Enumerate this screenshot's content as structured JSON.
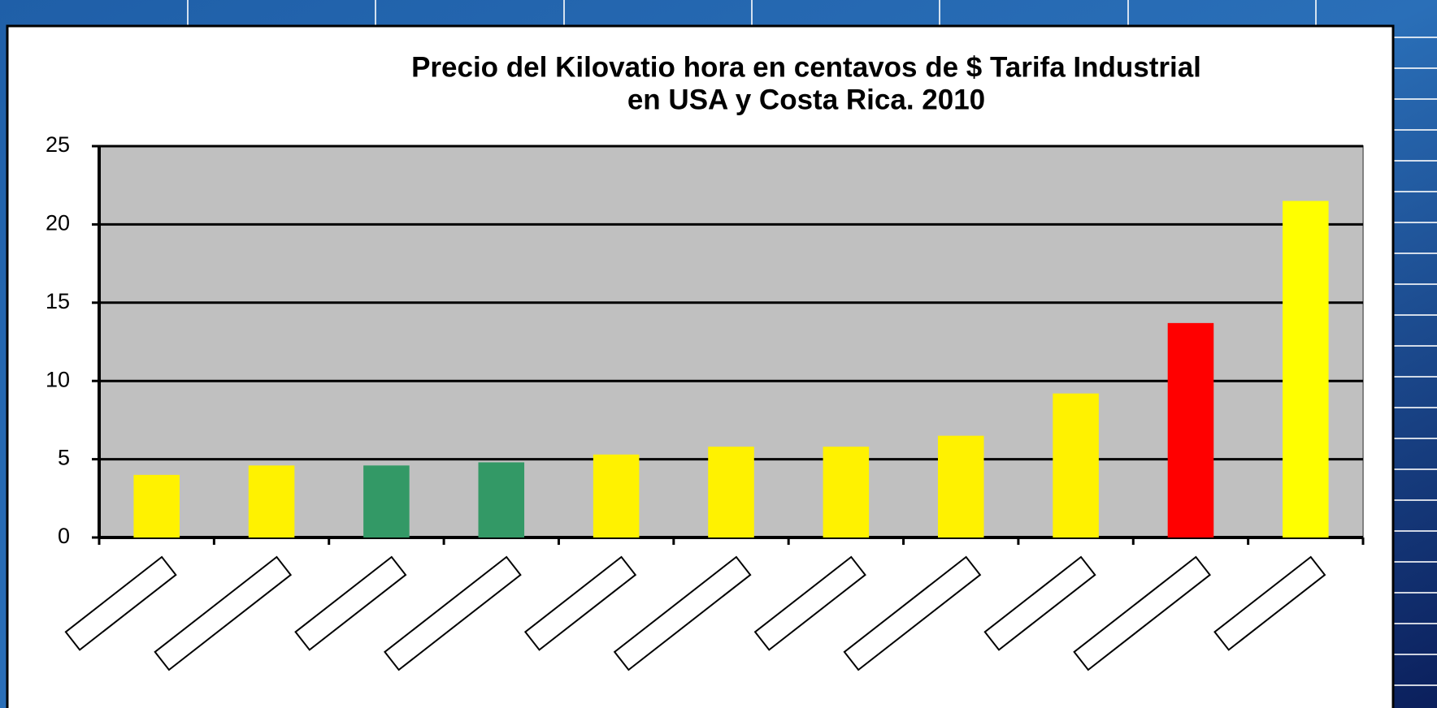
{
  "chart_data": {
    "type": "bar",
    "title": [
      "Precio del Kilovatio hora en centavos de $ Tarifa Industrial",
      "en USA  y Costa Rica. 2010"
    ],
    "categories": [
      null,
      null,
      null,
      null,
      null,
      null,
      null,
      null,
      null,
      null,
      null
    ],
    "values": [
      4.0,
      4.6,
      4.6,
      4.8,
      5.3,
      5.8,
      5.8,
      6.5,
      9.2,
      13.7,
      21.5
    ],
    "colors": [
      "#fff200",
      "#fff200",
      "#339966",
      "#339966",
      "#fff200",
      "#fff200",
      "#fff200",
      "#fff200",
      "#fff200",
      "#ff0000",
      "#ffff00"
    ],
    "ylim": [
      0,
      25
    ],
    "yticks": [
      0,
      5,
      10,
      15,
      20,
      25
    ],
    "grid": true
  }
}
